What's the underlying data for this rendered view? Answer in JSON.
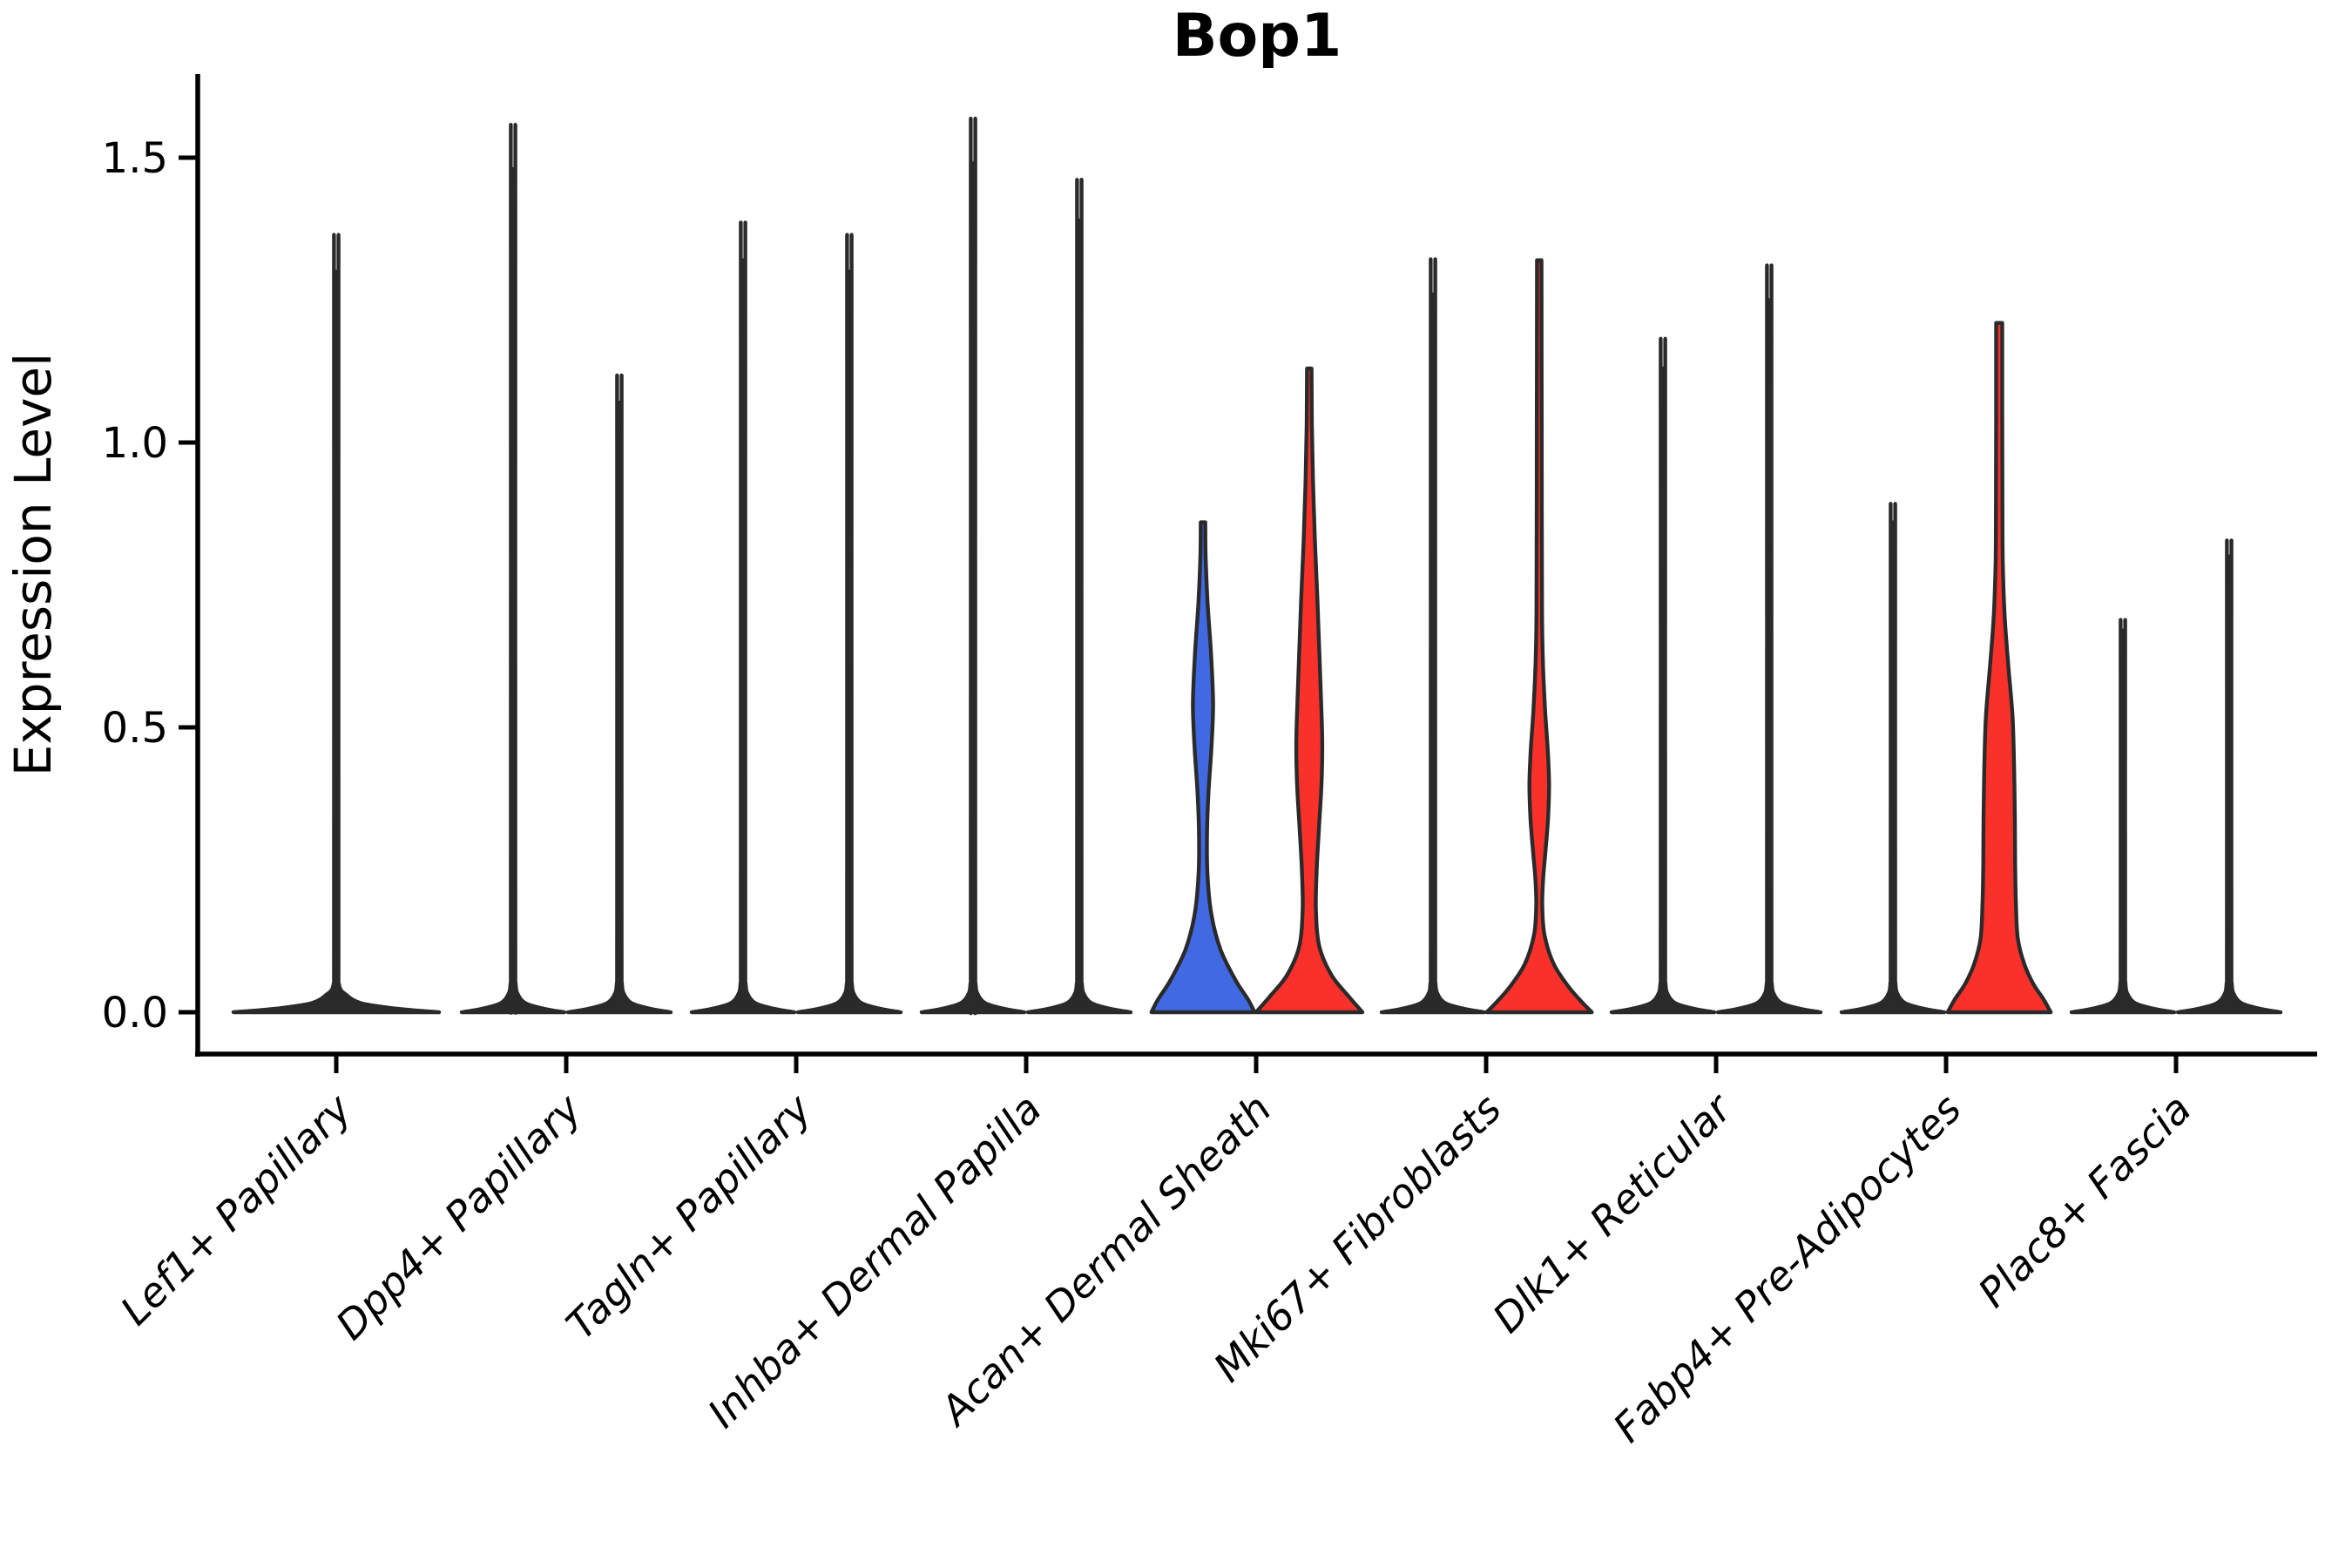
{
  "title": "Bop1",
  "y_axis": {
    "label": "Expression Level",
    "tick_labels": [
      "0.0",
      "0.5",
      "1.0",
      "1.5"
    ],
    "tick_values": [
      0.0,
      0.5,
      1.0,
      1.5
    ]
  },
  "x_axis": {
    "categories": [
      "Lef1+ Papillary",
      "Dpp4+ Papillary",
      "Tagln+ Papillary",
      "Inhba+ Dermal Papilla",
      "Acan+ Dermal Sheath",
      "Mki67+ Fibroblasts",
      "Dlk1+ Reticular",
      "Fabp4+ Pre-Adipocytes",
      "Plac8+ Fascia"
    ],
    "tick_rotation_deg": 45
  },
  "colors": {
    "blue_fill": "#4169E1",
    "red_fill": "#FA312B",
    "violin_edge": "#2A2A2A",
    "axis": "#000000",
    "background": "#FFFFFF"
  },
  "chart_data": {
    "type": "violin",
    "title": "Bop1",
    "ylabel": "Expression Level",
    "ylim": [
      -0.073,
      1.65
    ],
    "yticks": [
      0.0,
      0.5,
      1.0,
      1.5
    ],
    "grid": false,
    "legend": false,
    "categories": [
      "Lef1+ Papillary",
      "Dpp4+ Papillary",
      "Tagln+ Papillary",
      "Inhba+ Dermal Papilla",
      "Acan+ Dermal Sheath",
      "Mki67+ Fibroblasts",
      "Dlk1+ Reticular",
      "Fabp4+ Pre-Adipocytes",
      "Plac8+ Fascia"
    ],
    "description": "Split violin plot of Bop1 expression per fibroblast cluster; most violins collapse to a spike at 0 with a thin line to the max expressing cell. Colored violins mark populations with substantial expression.",
    "violins": [
      {
        "category": 0,
        "side": "center",
        "max": 1.3,
        "fill": null,
        "base_half_frac": 2.0
      },
      {
        "category": 1,
        "side": "left",
        "max": 1.48,
        "fill": null
      },
      {
        "category": 1,
        "side": "right",
        "max": 1.07,
        "fill": null
      },
      {
        "category": 2,
        "side": "left",
        "max": 1.32,
        "fill": null
      },
      {
        "category": 2,
        "side": "right",
        "max": 1.3,
        "fill": null
      },
      {
        "category": 3,
        "side": "left",
        "max": 1.49,
        "fill": null
      },
      {
        "category": 3,
        "side": "right",
        "max": 1.39,
        "fill": null
      },
      {
        "category": 4,
        "side": "left",
        "max": 0.86,
        "fill": "blue",
        "density": [
          [
            0.86,
            0.042
          ],
          [
            0.8,
            0.05
          ],
          [
            0.72,
            0.085
          ],
          [
            0.63,
            0.15
          ],
          [
            0.54,
            0.19
          ],
          [
            0.46,
            0.155
          ],
          [
            0.38,
            0.1
          ],
          [
            0.31,
            0.075
          ],
          [
            0.24,
            0.085
          ],
          [
            0.17,
            0.16
          ],
          [
            0.11,
            0.33
          ],
          [
            0.055,
            0.62
          ],
          [
            0.022,
            0.85
          ],
          [
            0,
            0.97
          ]
        ]
      },
      {
        "category": 4,
        "side": "right",
        "max": 1.13,
        "fill": "red",
        "density": [
          [
            1.13,
            0.042
          ],
          [
            1.03,
            0.05
          ],
          [
            0.93,
            0.07
          ],
          [
            0.83,
            0.105
          ],
          [
            0.73,
            0.15
          ],
          [
            0.63,
            0.19
          ],
          [
            0.54,
            0.225
          ],
          [
            0.47,
            0.245
          ],
          [
            0.4,
            0.23
          ],
          [
            0.32,
            0.18
          ],
          [
            0.25,
            0.14
          ],
          [
            0.18,
            0.125
          ],
          [
            0.115,
            0.19
          ],
          [
            0.065,
            0.42
          ],
          [
            0.028,
            0.74
          ],
          [
            0,
            1.0
          ]
        ]
      },
      {
        "category": 5,
        "side": "left",
        "max": 1.26,
        "fill": null
      },
      {
        "category": 5,
        "side": "right",
        "max": 1.32,
        "fill": "red",
        "density": [
          [
            1.32,
            0.042
          ],
          [
            1.15,
            0.045
          ],
          [
            0.9,
            0.048
          ],
          [
            0.7,
            0.052
          ],
          [
            0.61,
            0.07
          ],
          [
            0.53,
            0.11
          ],
          [
            0.46,
            0.16
          ],
          [
            0.4,
            0.185
          ],
          [
            0.34,
            0.165
          ],
          [
            0.28,
            0.115
          ],
          [
            0.23,
            0.07
          ],
          [
            0.185,
            0.058
          ],
          [
            0.135,
            0.1
          ],
          [
            0.085,
            0.27
          ],
          [
            0.045,
            0.55
          ],
          [
            0.018,
            0.8
          ],
          [
            0,
            0.99
          ]
        ]
      },
      {
        "category": 6,
        "side": "left",
        "max": 1.13,
        "fill": null
      },
      {
        "category": 6,
        "side": "right",
        "max": 1.25,
        "fill": null
      },
      {
        "category": 7,
        "side": "left",
        "max": 0.86,
        "fill": null
      },
      {
        "category": 7,
        "side": "right",
        "max": 1.21,
        "fill": "red",
        "density": [
          [
            1.21,
            0.058
          ],
          [
            1.05,
            0.058
          ],
          [
            0.9,
            0.06
          ],
          [
            0.79,
            0.068
          ],
          [
            0.7,
            0.1
          ],
          [
            0.61,
            0.17
          ],
          [
            0.52,
            0.25
          ],
          [
            0.43,
            0.28
          ],
          [
            0.34,
            0.295
          ],
          [
            0.26,
            0.3
          ],
          [
            0.19,
            0.315
          ],
          [
            0.13,
            0.35
          ],
          [
            0.085,
            0.47
          ],
          [
            0.05,
            0.64
          ],
          [
            0.022,
            0.84
          ],
          [
            0,
            0.97
          ]
        ]
      },
      {
        "category": 8,
        "side": "left",
        "max": 0.67,
        "fill": null
      },
      {
        "category": 8,
        "side": "right",
        "max": 0.8,
        "fill": null
      }
    ]
  }
}
